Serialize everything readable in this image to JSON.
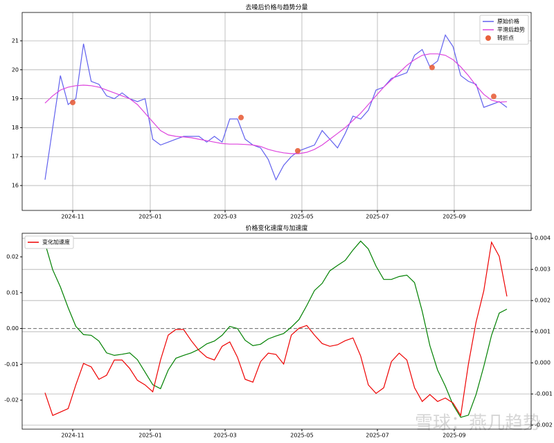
{
  "chart_data": [
    {
      "type": "line",
      "title": "去噪后价格与趋势分量",
      "xlim": [
        -2.97,
        63.15
      ],
      "xticks": [
        {
          "value": 3.6,
          "label": "2024-11"
        },
        {
          "value": 13.67,
          "label": "2025-01"
        },
        {
          "value": 23.39,
          "label": "2025-03"
        },
        {
          "value": 33.37,
          "label": "2025-05"
        },
        {
          "value": 43.18,
          "label": "2025-07"
        },
        {
          "value": 53.16,
          "label": "2025-09"
        }
      ],
      "ylim": [
        15.14,
        21.98
      ],
      "yticks": [
        16,
        17,
        18,
        19,
        20,
        21
      ],
      "grid": "both",
      "legend": "upper right",
      "series": [
        {
          "name": "原始价格",
          "color": "#6060ee",
          "values": [
            16.2,
            18.0,
            19.8,
            18.8,
            19.0,
            20.9,
            19.6,
            19.5,
            19.1,
            19.0,
            19.2,
            19.0,
            18.9,
            19.0,
            17.6,
            17.4,
            17.5,
            17.6,
            17.7,
            17.7,
            17.7,
            17.5,
            17.7,
            17.5,
            18.3,
            18.3,
            17.6,
            17.4,
            17.3,
            16.9,
            16.2,
            16.7,
            17.0,
            17.2,
            17.3,
            17.4,
            17.9,
            17.6,
            17.3,
            17.8,
            18.4,
            18.3,
            18.6,
            19.3,
            19.4,
            19.7,
            19.8,
            19.9,
            20.5,
            20.7,
            20.1,
            20.3,
            21.2,
            20.8,
            19.8,
            19.6,
            19.5,
            18.7,
            18.8,
            18.9,
            18.7
          ]
        },
        {
          "name": "平滑后趋势",
          "color": "#dd44dd",
          "values": [
            18.85,
            19.1,
            19.3,
            19.4,
            19.45,
            19.47,
            19.45,
            19.4,
            19.3,
            19.2,
            19.1,
            19.0,
            18.8,
            18.5,
            18.2,
            17.9,
            17.75,
            17.7,
            17.68,
            17.65,
            17.6,
            17.55,
            17.5,
            17.45,
            17.43,
            17.43,
            17.42,
            17.4,
            17.35,
            17.25,
            17.18,
            17.13,
            17.1,
            17.1,
            17.15,
            17.25,
            17.4,
            17.6,
            17.8,
            18.0,
            18.25,
            18.5,
            18.8,
            19.1,
            19.4,
            19.65,
            19.9,
            20.15,
            20.35,
            20.5,
            20.55,
            20.55,
            20.5,
            20.35,
            20.1,
            19.8,
            19.45,
            19.15,
            18.95,
            18.88,
            18.9
          ]
        },
        {
          "name": "转折点",
          "type": "scatter",
          "color": "#e8603c",
          "x": [
            3.6,
            25.46,
            32.83,
            50.28,
            58.29
          ],
          "values": [
            18.87,
            18.35,
            17.2,
            20.08,
            19.08
          ]
        }
      ]
    },
    {
      "type": "line",
      "title": "价格变化速度与加速度",
      "xlim": [
        -2.97,
        63.15
      ],
      "xticks": [
        {
          "value": 3.6,
          "label": "2024-11"
        },
        {
          "value": 13.67,
          "label": "2025-01"
        },
        {
          "value": 23.39,
          "label": "2025-03"
        },
        {
          "value": 33.37,
          "label": "2025-05"
        },
        {
          "value": 43.18,
          "label": "2025-07"
        },
        {
          "value": 53.16,
          "label": "2025-09"
        }
      ],
      "ylim": [
        -0.0281,
        0.02658
      ],
      "yticks": [
        -0.02,
        -0.01,
        {
          "value": 0,
          "label": "0.00"
        },
        0.01,
        0.02
      ],
      "y2lim": [
        -0.00213,
        0.00416
      ],
      "y2ticks": [
        -0.002,
        -0.001,
        {
          "value": 0,
          "label": "0.000"
        },
        0.001,
        0.002,
        0.003,
        0.004
      ],
      "grid": "y2",
      "legend": "upper left",
      "hlines": [
        0
      ],
      "series": [
        {
          "color": "#008000",
          "values": [
            0.0238,
            0.0164,
            0.0116,
            0.0058,
            0.0006,
            -0.0017,
            -0.0019,
            -0.0035,
            -0.0068,
            -0.0075,
            -0.0072,
            -0.0068,
            -0.0087,
            -0.0122,
            -0.0157,
            -0.0168,
            -0.0116,
            -0.0083,
            -0.0075,
            -0.0068,
            -0.0058,
            -0.0043,
            -0.0035,
            -0.0019,
            0.0006,
            0,
            -0.0033,
            -0.0048,
            -0.0044,
            -0.0029,
            -0.0021,
            -0.0014,
            0.0004,
            0.0025,
            0.0064,
            0.0106,
            0.0126,
            0.0161,
            0.0176,
            0.019,
            0.0219,
            0.0244,
            0.0222,
            0.0174,
            0.0137,
            0.0137,
            0.0145,
            0.0149,
            0.0128,
            0.0048,
            -0.0048,
            -0.0116,
            -0.0161,
            -0.0213,
            -0.0248,
            -0.0242,
            -0.0184,
            -0.0106,
            -0.0019,
            0.0043,
            0.0054
          ]
        },
        {
          "name": "变化加速度",
          "color": "#ee0000",
          "axis": "y2",
          "values": [
            -0.00096,
            -0.00169,
            -0.00158,
            -0.00147,
            -0.00071,
            -2e-05,
            -0.00013,
            -0.00053,
            -0.0004,
            9e-05,
            9e-05,
            -0.00018,
            -0.00056,
            -0.00071,
            -0.00093,
            9e-05,
            0.00089,
            0.00107,
            0.00107,
            0.00071,
            0.0004,
            0.00018,
            9e-05,
            0.00053,
            0.00067,
            0.00018,
            -0.00053,
            -0.00062,
            4e-05,
            0.00031,
            0.00027,
            -4e-05,
            0.00089,
            0.00111,
            0.0012,
            0.00089,
            0.00062,
            0.00053,
            0.00058,
            0.00071,
            0.0008,
            0.00022,
            -0.00071,
            -0.00098,
            -0.0008,
            4e-05,
            0.00031,
            9e-05,
            -0.0008,
            -0.00124,
            -0.00102,
            -0.00124,
            -0.00113,
            -0.00129,
            -0.00169,
            -4e-05,
            0.00131,
            0.00231,
            0.00387,
            0.00342,
            0.00213
          ]
        }
      ]
    }
  ],
  "watermark": "雪球：燕几趋势"
}
